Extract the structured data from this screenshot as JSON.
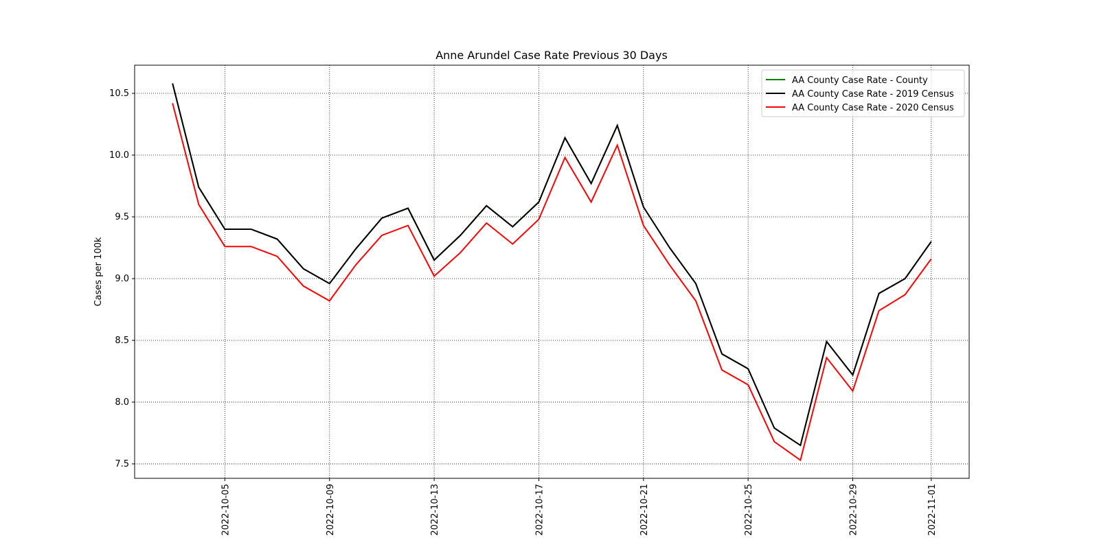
{
  "chart_data": {
    "type": "line",
    "title": "Anne Arundel Case Rate Previous 30 Days",
    "ylabel": "Cases per 100k",
    "x": [
      "2022-10-03",
      "2022-10-04",
      "2022-10-05",
      "2022-10-06",
      "2022-10-07",
      "2022-10-08",
      "2022-10-09",
      "2022-10-10",
      "2022-10-11",
      "2022-10-12",
      "2022-10-13",
      "2022-10-14",
      "2022-10-15",
      "2022-10-16",
      "2022-10-17",
      "2022-10-18",
      "2022-10-19",
      "2022-10-20",
      "2022-10-21",
      "2022-10-22",
      "2022-10-23",
      "2022-10-24",
      "2022-10-25",
      "2022-10-26",
      "2022-10-27",
      "2022-10-28",
      "2022-10-29",
      "2022-10-30",
      "2022-10-31",
      "2022-11-01"
    ],
    "series": [
      {
        "name": "AA County Case Rate - County",
        "color": "#008000",
        "values": [
          10.58,
          9.74,
          9.4,
          9.4,
          9.32,
          9.08,
          8.96,
          9.24,
          9.49,
          9.57,
          9.15,
          9.35,
          9.59,
          9.42,
          9.62,
          10.14,
          9.77,
          10.24,
          9.58,
          9.25,
          8.96,
          8.39,
          8.27,
          7.79,
          7.65,
          8.49,
          8.22,
          8.88,
          9.0,
          9.3
        ]
      },
      {
        "name": "AA County Case Rate - 2019 Census",
        "color": "#000000",
        "values": [
          10.58,
          9.74,
          9.4,
          9.4,
          9.32,
          9.08,
          8.96,
          9.24,
          9.49,
          9.57,
          9.15,
          9.35,
          9.59,
          9.42,
          9.62,
          10.14,
          9.77,
          10.24,
          9.58,
          9.25,
          8.96,
          8.39,
          8.27,
          7.79,
          7.65,
          8.49,
          8.22,
          8.88,
          9.0,
          9.3
        ]
      },
      {
        "name": "AA County Case Rate - 2020 Census",
        "color": "#ff0000",
        "values": [
          10.42,
          9.6,
          9.26,
          9.26,
          9.18,
          8.94,
          8.82,
          9.11,
          9.35,
          9.43,
          9.02,
          9.21,
          9.45,
          9.28,
          9.48,
          9.98,
          9.62,
          10.08,
          9.43,
          9.11,
          8.82,
          8.26,
          8.14,
          7.68,
          7.53,
          8.36,
          8.09,
          8.74,
          8.87,
          9.16
        ]
      }
    ],
    "xlim": [
      "2022-10-01T13:12:00Z",
      "2022-11-02T10:48:00Z"
    ],
    "xticks": [
      "2022-10-05",
      "2022-10-09",
      "2022-10-13",
      "2022-10-17",
      "2022-10-21",
      "2022-10-25",
      "2022-10-29",
      "2022-11-01"
    ],
    "ylim": [
      7.383,
      10.728
    ],
    "yticks": [
      {
        "value": 7.5,
        "label": "7.5"
      },
      {
        "value": 8,
        "label": "8.0"
      },
      {
        "value": 8.5,
        "label": "8.5"
      },
      {
        "value": 9,
        "label": "9.0"
      },
      {
        "value": 9.5,
        "label": "9.5"
      },
      {
        "value": 10,
        "label": "10.0"
      },
      {
        "value": 10.5,
        "label": "10.5"
      }
    ],
    "grid": true,
    "legend": "upper right"
  }
}
